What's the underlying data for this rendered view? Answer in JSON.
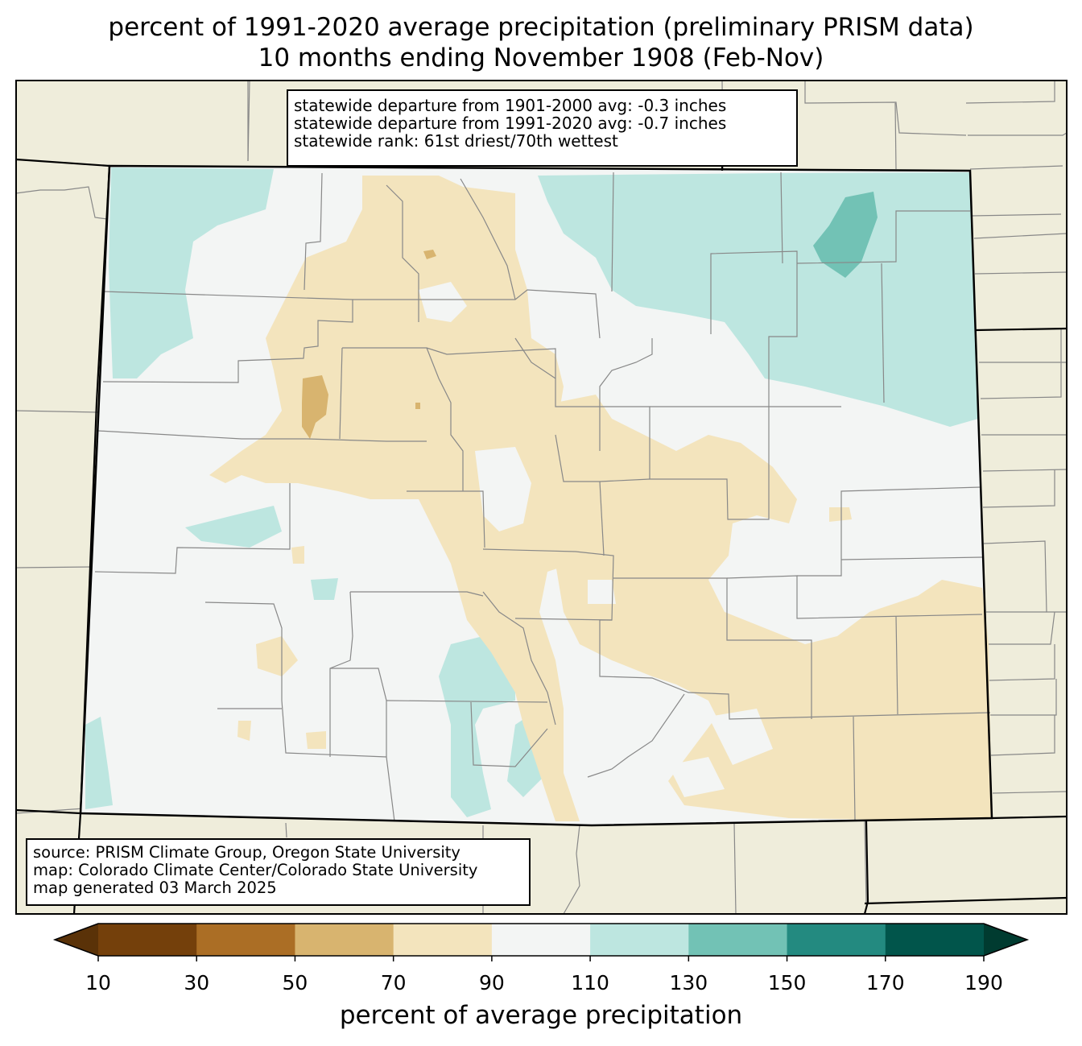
{
  "title": {
    "line1": "percent of 1991-2020 average precipitation (preliminary PRISM data)",
    "line2": "10 months ending November 1908 (Feb-Nov)"
  },
  "stats": {
    "line1": "statewide departure from 1901-2000 avg: -0.3 inches",
    "line2": "statewide departure from 1991-2020 avg: -0.7 inches",
    "line3": "statewide rank: 61st driest/70th wettest"
  },
  "source": {
    "line1": "source: PRISM Climate Group, Oregon State University",
    "line2": "map: Colorado Climate Center/Colorado State University",
    "line3": "map generated 03 March 2025"
  },
  "colorbar": {
    "label": "percent of average precipitation",
    "ticks": [
      "10",
      "30",
      "50",
      "70",
      "90",
      "110",
      "130",
      "150",
      "170",
      "190"
    ],
    "bins": [
      {
        "from": 10,
        "to": 30,
        "color": "#74400b"
      },
      {
        "from": 30,
        "to": 50,
        "color": "#ab6e25"
      },
      {
        "from": 50,
        "to": 70,
        "color": "#d8b46f"
      },
      {
        "from": 70,
        "to": 90,
        "color": "#f3e4bd"
      },
      {
        "from": 90,
        "to": 110,
        "color": "#f3f5f4"
      },
      {
        "from": 110,
        "to": 130,
        "color": "#bde6e0"
      },
      {
        "from": 130,
        "to": 150,
        "color": "#72c2b5"
      },
      {
        "from": 150,
        "to": 170,
        "color": "#238a80"
      },
      {
        "from": 170,
        "to": 190,
        "color": "#01554b"
      }
    ],
    "under_color": "#5a3208",
    "over_color": "#003b30"
  },
  "colors": {
    "background_land": "#efeddb",
    "county_lines": "#888888",
    "state_lines": "#000000"
  }
}
